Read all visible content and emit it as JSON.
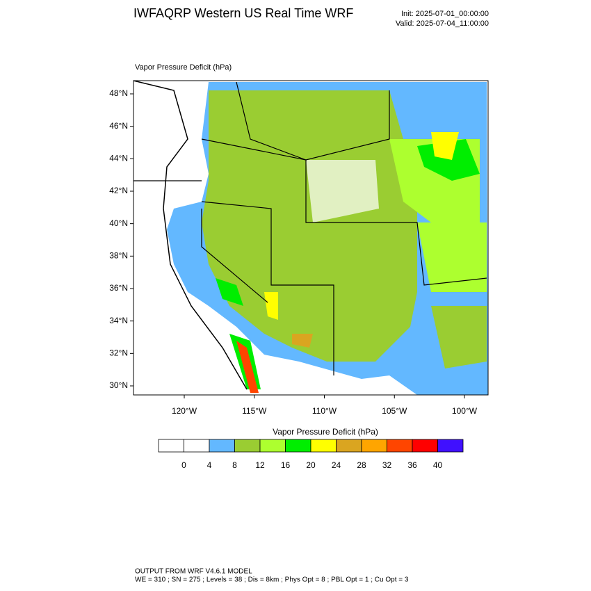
{
  "header": {
    "title": "IWFAQRP Western US Real Time WRF",
    "init": "Init: 2025-07-01_00:00:00",
    "valid": "Valid: 2025-07-04_11:00:00"
  },
  "map": {
    "field_label": "Vapor Pressure Deficit   (hPa)",
    "lat_ticks": [
      {
        "value": 30,
        "label": "30°N"
      },
      {
        "value": 32,
        "label": "32°N"
      },
      {
        "value": 34,
        "label": "34°N"
      },
      {
        "value": 36,
        "label": "36°N"
      },
      {
        "value": 38,
        "label": "38°N"
      },
      {
        "value": 40,
        "label": "40°N"
      },
      {
        "value": 42,
        "label": "42°N"
      },
      {
        "value": 44,
        "label": "44°N"
      },
      {
        "value": 46,
        "label": "46°N"
      },
      {
        "value": 48,
        "label": "48°N"
      }
    ],
    "lon_ticks": [
      {
        "value": -120,
        "label": "120°W"
      },
      {
        "value": -115,
        "label": "115°W"
      },
      {
        "value": -110,
        "label": "110°W"
      },
      {
        "value": -105,
        "label": "105°W"
      },
      {
        "value": -100,
        "label": "100°W"
      }
    ]
  },
  "colorbar": {
    "title": "Vapor Pressure Deficit  (hPa)",
    "levels": [
      0,
      4,
      8,
      12,
      16,
      20,
      24,
      28,
      32,
      36,
      40
    ],
    "colors": [
      "#ffffff",
      "#ffffff",
      "#63b8ff",
      "#9acd32",
      "#adff2f",
      "#00ee00",
      "#ffff00",
      "#daa520",
      "#ffa500",
      "#ff4500",
      "#ff0000",
      "#4010ff"
    ]
  },
  "footer": {
    "line1": "OUTPUT FROM WRF V4.6.1 MODEL",
    "line2": "WE = 310 ; SN = 275 ; Levels = 38 ; Dis = 8km ; Phys Opt = 8 ; PBL Opt = 1 ; Cu Opt = 3"
  }
}
